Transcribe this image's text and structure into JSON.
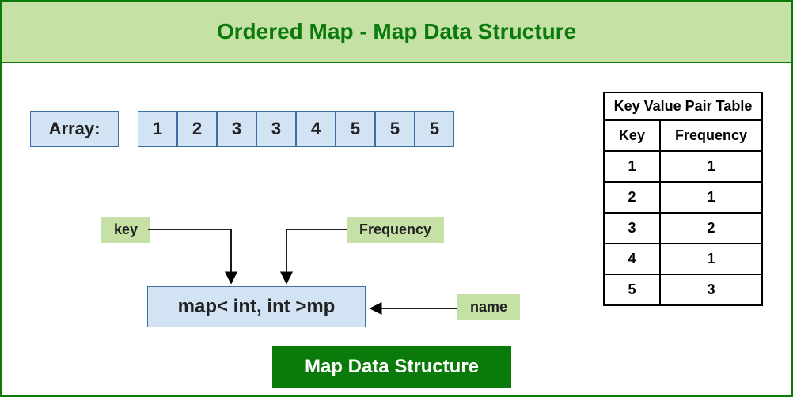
{
  "header": {
    "title": "Ordered Map - Map Data Structure"
  },
  "array": {
    "label": "Array:",
    "cells": [
      "1",
      "2",
      "3",
      "3",
      "4",
      "5",
      "5",
      "5"
    ],
    "cell_bg": "#d2e3f3",
    "cell_border": "#3a6ea5"
  },
  "tags": {
    "key": "key",
    "frequency": "Frequency",
    "name": "name",
    "bg": "#c5e1a5"
  },
  "map_box": {
    "text": "map< int, int >mp",
    "bg": "#d2e3f3",
    "border": "#3a6ea5"
  },
  "connectors": {
    "stroke": "#000000",
    "stroke_width": 1.8
  },
  "footer": {
    "text": "Map Data Structure",
    "bg": "#0a7a0a",
    "color": "#ffffff"
  },
  "kv_table": {
    "title": "Key Value Pair Table",
    "columns": [
      "Key",
      "Frequency"
    ],
    "rows": [
      [
        "1",
        "1"
      ],
      [
        "2",
        "1"
      ],
      [
        "3",
        "2"
      ],
      [
        "4",
        "1"
      ],
      [
        "5",
        "3"
      ]
    ],
    "border": "#000000"
  },
  "colors": {
    "frame_border": "#0a7a0a",
    "header_bg": "#c5e1a5",
    "header_text": "#0a7a0a"
  }
}
